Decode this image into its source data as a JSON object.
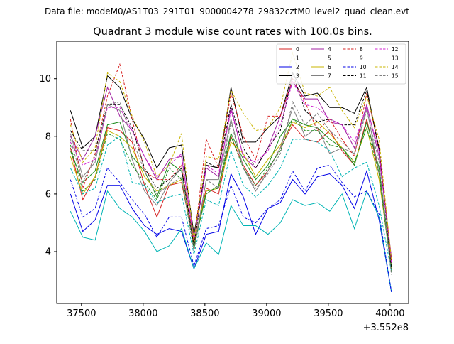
{
  "page": {
    "header": "Data file: modeM0/AS1T03_291T01_9000004278_29832cztM0_level2_quad_clean.evt"
  },
  "chart_data": {
    "type": "line",
    "title": "Quadrant 3 module wise count rates with 100.0s bins.",
    "xlabel": "",
    "ylabel": "",
    "x_offset_label": "+3.552e8",
    "xlim": [
      37300,
      40150
    ],
    "ylim": [
      2.2,
      11.3
    ],
    "xticks": [
      37500,
      38000,
      38500,
      39000,
      39500,
      40000
    ],
    "yticks": [
      4,
      6,
      8,
      10
    ],
    "grid": false,
    "legend_position": "top-right",
    "legend_columns": 4,
    "x": [
      37411,
      37511,
      37611,
      37711,
      37811,
      37911,
      38011,
      38111,
      38211,
      38311,
      38411,
      38511,
      38611,
      38711,
      38811,
      38911,
      39011,
      39111,
      39211,
      39311,
      39411,
      39511,
      39611,
      39711,
      39811,
      39911,
      40011
    ],
    "series": [
      {
        "name": "0",
        "color": "#d62020",
        "dash": false,
        "values": [
          7.6,
          5.8,
          6.6,
          8.3,
          8.2,
          7.8,
          6.3,
          5.2,
          6.3,
          6.4,
          4.3,
          6.2,
          6.0,
          8.0,
          7.0,
          6.3,
          6.8,
          7.6,
          8.4,
          7.9,
          7.8,
          8.2,
          7.5,
          7.0,
          8.6,
          6.7,
          3.6
        ]
      },
      {
        "name": "1",
        "color": "#1e8c1e",
        "dash": false,
        "values": [
          7.5,
          6.4,
          6.8,
          8.4,
          8.5,
          7.3,
          6.8,
          5.9,
          7.1,
          6.8,
          4.2,
          6.0,
          6.3,
          8.1,
          7.2,
          6.5,
          7.0,
          8.0,
          8.6,
          8.4,
          8.3,
          7.9,
          7.6,
          7.0,
          8.5,
          6.9,
          3.5
        ]
      },
      {
        "name": "2",
        "color": "#0000e6",
        "dash": false,
        "values": [
          6.0,
          4.7,
          5.1,
          6.3,
          6.3,
          5.5,
          4.9,
          4.6,
          4.8,
          4.7,
          3.4,
          4.6,
          4.7,
          6.7,
          5.9,
          4.6,
          5.5,
          5.7,
          6.5,
          6.0,
          6.6,
          6.7,
          6.3,
          5.5,
          6.8,
          5.1,
          2.6
        ]
      },
      {
        "name": "3",
        "color": "#000000",
        "dash": false,
        "values": [
          8.9,
          7.6,
          8.0,
          10.1,
          9.7,
          8.6,
          7.9,
          6.9,
          7.6,
          7.7,
          4.6,
          7.0,
          6.9,
          9.7,
          7.8,
          7.8,
          8.3,
          8.7,
          10.2,
          9.4,
          9.5,
          9.0,
          9.0,
          8.8,
          9.7,
          7.5,
          3.7
        ]
      },
      {
        "name": "4",
        "color": "#a020a0",
        "dash": false,
        "values": [
          8.0,
          7.2,
          8.0,
          9.7,
          8.7,
          8.2,
          7.3,
          6.5,
          7.2,
          7.3,
          4.4,
          6.9,
          6.6,
          9.0,
          7.3,
          6.9,
          7.6,
          8.7,
          9.9,
          9.3,
          9.3,
          8.5,
          8.4,
          7.6,
          9.1,
          7.3,
          3.8
        ]
      },
      {
        "name": "5",
        "color": "#00b4b4",
        "dash": false,
        "values": [
          5.4,
          4.5,
          4.4,
          6.1,
          5.5,
          5.2,
          4.7,
          4.0,
          4.2,
          4.8,
          3.4,
          4.3,
          3.9,
          5.6,
          4.9,
          4.9,
          4.6,
          5.0,
          5.8,
          5.6,
          5.7,
          5.4,
          6.0,
          4.8,
          6.1,
          5.2,
          2.6
        ]
      },
      {
        "name": "6",
        "color": "#c8b400",
        "dash": false,
        "values": [
          7.3,
          6.0,
          6.6,
          8.2,
          8.0,
          7.6,
          6.6,
          6.1,
          6.3,
          6.5,
          4.3,
          6.1,
          6.2,
          7.8,
          7.4,
          6.6,
          7.2,
          7.7,
          8.5,
          8.3,
          8.5,
          8.1,
          7.6,
          7.1,
          8.3,
          6.5,
          3.4
        ]
      },
      {
        "name": "7",
        "color": "#808080",
        "dash": false,
        "values": [
          8.1,
          6.6,
          7.1,
          9.1,
          8.9,
          7.2,
          6.1,
          5.6,
          6.4,
          6.9,
          4.1,
          6.5,
          6.5,
          8.6,
          6.9,
          6.1,
          6.8,
          7.6,
          9.0,
          8.0,
          8.3,
          7.4,
          7.6,
          7.4,
          9.0,
          6.7,
          3.3
        ]
      },
      {
        "name": "8",
        "color": "#d62020",
        "dash": true,
        "values": [
          8.6,
          6.2,
          7.4,
          9.4,
          10.5,
          8.6,
          6.8,
          6.5,
          6.5,
          7.0,
          4.3,
          7.9,
          6.9,
          9.5,
          8.0,
          7.2,
          8.7,
          8.7,
          10.0,
          9.2,
          8.2,
          8.6,
          7.9,
          7.3,
          9.5,
          7.6,
          3.7
        ]
      },
      {
        "name": "9",
        "color": "#1e8c1e",
        "dash": true,
        "values": [
          7.7,
          6.1,
          6.5,
          8.1,
          7.9,
          7.0,
          6.4,
          5.8,
          6.9,
          6.5,
          4.1,
          6.1,
          6.2,
          8.0,
          6.9,
          6.3,
          6.9,
          7.5,
          8.6,
          8.2,
          8.2,
          7.7,
          7.6,
          7.1,
          8.3,
          6.7,
          3.3
        ]
      },
      {
        "name": "10",
        "color": "#0000e6",
        "dash": true,
        "values": [
          6.5,
          5.2,
          5.5,
          6.9,
          6.4,
          5.8,
          5.3,
          4.5,
          5.2,
          5.2,
          3.5,
          4.8,
          4.9,
          6.3,
          5.2,
          5.0,
          5.5,
          5.8,
          6.8,
          6.1,
          6.9,
          7.0,
          6.4,
          5.9,
          6.1,
          5.3,
          2.6
        ]
      },
      {
        "name": "11",
        "color": "#000000",
        "dash": true,
        "values": [
          8.2,
          7.5,
          7.5,
          9.1,
          9.1,
          8.3,
          6.9,
          6.2,
          6.5,
          6.9,
          4.2,
          7.1,
          6.9,
          9.1,
          7.6,
          6.9,
          7.6,
          8.2,
          10.2,
          8.9,
          8.5,
          8.6,
          8.4,
          8.4,
          9.6,
          7.6,
          3.4
        ]
      },
      {
        "name": "12",
        "color": "#d020d0",
        "dash": true,
        "values": [
          7.8,
          7.0,
          7.2,
          9.0,
          9.0,
          8.2,
          7.3,
          6.6,
          7.0,
          7.4,
          4.4,
          7.0,
          6.7,
          8.9,
          7.3,
          7.1,
          7.5,
          8.4,
          9.9,
          9.1,
          9.0,
          8.6,
          8.4,
          7.8,
          9.0,
          7.5,
          3.6
        ]
      },
      {
        "name": "13",
        "color": "#00b4b4",
        "dash": true,
        "values": [
          6.9,
          6.0,
          6.2,
          7.7,
          8.0,
          6.4,
          6.3,
          5.7,
          5.9,
          6.0,
          3.9,
          5.8,
          5.6,
          7.5,
          6.3,
          5.9,
          6.3,
          6.9,
          7.9,
          7.9,
          7.8,
          7.5,
          6.6,
          6.9,
          7.1,
          5.6,
          3.3
        ]
      },
      {
        "name": "14",
        "color": "#c8b400",
        "dash": true,
        "values": [
          8.4,
          7.1,
          7.6,
          10.2,
          9.9,
          8.7,
          7.8,
          6.6,
          7.0,
          8.1,
          4.4,
          7.3,
          7.2,
          9.6,
          8.8,
          8.2,
          8.3,
          9.0,
          10.9,
          9.5,
          9.4,
          9.7,
          8.9,
          8.3,
          9.4,
          7.9,
          3.7
        ]
      },
      {
        "name": "15",
        "color": "#808080",
        "dash": true,
        "values": [
          7.9,
          6.4,
          7.3,
          9.1,
          9.2,
          7.9,
          6.8,
          6.0,
          6.3,
          6.6,
          4.0,
          6.5,
          6.2,
          8.5,
          6.9,
          6.2,
          6.7,
          7.4,
          9.2,
          8.4,
          8.8,
          8.2,
          7.8,
          7.4,
          8.9,
          7.1,
          3.2
        ]
      }
    ]
  }
}
